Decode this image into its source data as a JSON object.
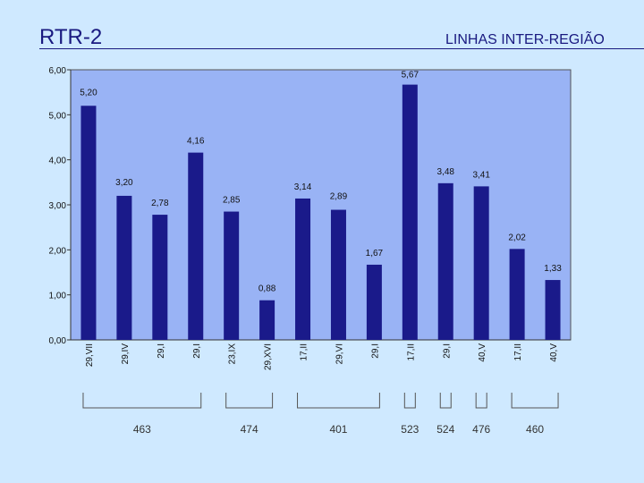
{
  "title": "RTR-2",
  "subtitle": "LINHAS INTER-REGIÃO",
  "colors": {
    "background": "#cfe9ff",
    "plot_area": "#99b3f5",
    "bar": "#1a1a8a",
    "text": "#1a1a80"
  },
  "chart_data": {
    "type": "bar",
    "categories": [
      "29,VII",
      "29,IV",
      "29,I",
      "29,I",
      "23,IX",
      "29,XVI",
      "17,II",
      "29,VI",
      "29,I",
      "17,II",
      "29,I",
      "40,V",
      "17,II",
      "40,V"
    ],
    "values": [
      5.2,
      3.2,
      2.78,
      4.16,
      2.85,
      0.88,
      3.14,
      2.89,
      1.67,
      5.67,
      3.48,
      3.41,
      2.02,
      1.33
    ],
    "data_labels": [
      "5,20",
      "3,20",
      "2,78",
      "4,16",
      "2,85",
      "0,88",
      "3,14",
      "2,89",
      "1,67",
      "5,67",
      "3,48",
      "3,41",
      "2,02",
      "1,33"
    ],
    "ylim": [
      0,
      6
    ],
    "yticks": [
      0,
      1,
      2,
      3,
      4,
      5,
      6
    ],
    "ytick_labels": [
      "0,00",
      "1,00",
      "2,00",
      "3,00",
      "4,00",
      "5,00",
      "6,00"
    ],
    "grid": false,
    "legend": "none",
    "groups": [
      {
        "label": "463",
        "start": 0,
        "end": 3
      },
      {
        "label": "474",
        "start": 4,
        "end": 5
      },
      {
        "label": "401",
        "start": 6,
        "end": 8
      },
      {
        "label": "523",
        "start": 9,
        "end": 9
      },
      {
        "label": "524",
        "start": 10,
        "end": 10
      },
      {
        "label": "476",
        "start": 11,
        "end": 11
      },
      {
        "label": "460",
        "start": 12,
        "end": 13
      }
    ]
  }
}
